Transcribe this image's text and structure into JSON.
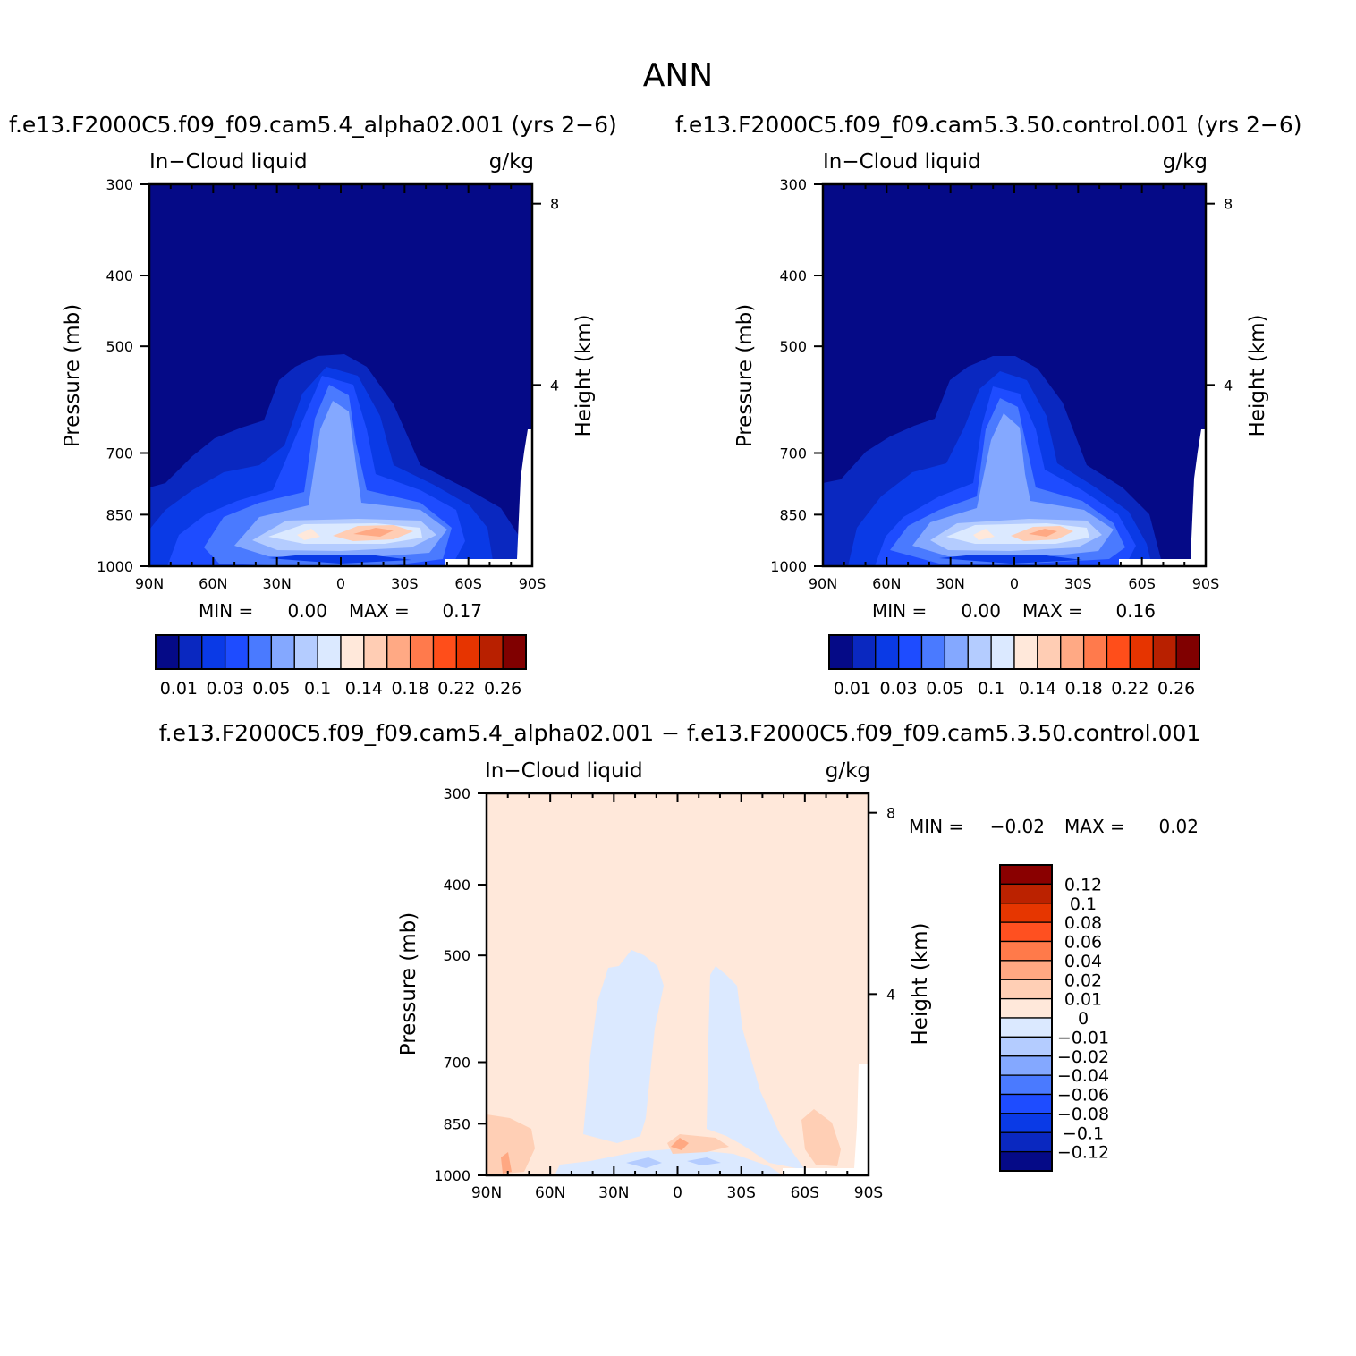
{
  "title": "ANN",
  "chart_data": [
    {
      "type": "heatmap",
      "subtitle": "f.e13.F2000C5.f09_f09.cam5.4_alpha02.001 (yrs 2−6)",
      "variable": "In−Cloud liquid",
      "units": "g/kg",
      "xlabel": "",
      "ylabel": "Pressure (mb)",
      "y2label": "Height (km)",
      "xticks": [
        "90N",
        "60N",
        "30N",
        "0",
        "30S",
        "60S",
        "90S"
      ],
      "xlim": [
        90,
        -90
      ],
      "yticks": [
        "300",
        "400",
        "500",
        "700",
        "850",
        "1000"
      ],
      "ylim": [
        1000,
        300
      ],
      "y_scale": "log",
      "y2ticks": [
        "8",
        "4"
      ],
      "min_label": "MIN =",
      "min_value": "0.00",
      "max_label": "MAX =",
      "max_value": "0.17",
      "peak": {
        "lat": -14,
        "pressure": 920,
        "value": 0.17
      },
      "colorbar": {
        "levels": [
          "0.01",
          "0.03",
          "0.05",
          "0.1",
          "0.14",
          "0.18",
          "0.22",
          "0.26"
        ],
        "colors": [
          "#050a87",
          "#0a28c0",
          "#0a3ae6",
          "#1e4cff",
          "#4a7aff",
          "#84a8ff",
          "#b4ccff",
          "#dbe9ff",
          "#ffe8da",
          "#ffcdb4",
          "#ffa984",
          "#ff7a4c",
          "#ff4e1a",
          "#e63400",
          "#b82000",
          "#800000"
        ]
      }
    },
    {
      "type": "heatmap",
      "subtitle": "f.e13.F2000C5.f09_f09.cam5.3.50.control.001 (yrs 2−6)",
      "variable": "In−Cloud liquid",
      "units": "g/kg",
      "xlabel": "",
      "ylabel": "Pressure (mb)",
      "y2label": "Height (km)",
      "xticks": [
        "90N",
        "60N",
        "30N",
        "0",
        "30S",
        "60S",
        "90S"
      ],
      "xlim": [
        90,
        -90
      ],
      "yticks": [
        "300",
        "400",
        "500",
        "700",
        "850",
        "1000"
      ],
      "ylim": [
        1000,
        300
      ],
      "y_scale": "log",
      "y2ticks": [
        "8",
        "4"
      ],
      "min_label": "MIN =",
      "min_value": "0.00",
      "max_label": "MAX =",
      "max_value": "0.16",
      "peak": {
        "lat": -14,
        "pressure": 920,
        "value": 0.16
      },
      "colorbar": {
        "levels": [
          "0.01",
          "0.03",
          "0.05",
          "0.1",
          "0.14",
          "0.18",
          "0.22",
          "0.26"
        ],
        "colors": [
          "#050a87",
          "#0a28c0",
          "#0a3ae6",
          "#1e4cff",
          "#4a7aff",
          "#84a8ff",
          "#b4ccff",
          "#dbe9ff",
          "#ffe8da",
          "#ffcdb4",
          "#ffa984",
          "#ff7a4c",
          "#ff4e1a",
          "#e63400",
          "#b82000",
          "#800000"
        ]
      }
    },
    {
      "type": "heatmap",
      "subtitle": "f.e13.F2000C5.f09_f09.cam5.4_alpha02.001 − f.e13.F2000C5.f09_f09.cam5.3.50.control.001",
      "variable": "In−Cloud liquid",
      "units": "g/kg",
      "xlabel": "",
      "ylabel": "Pressure (mb)",
      "y2label": "Height (km)",
      "xticks": [
        "90N",
        "60N",
        "30N",
        "0",
        "30S",
        "60S",
        "90S"
      ],
      "xlim": [
        90,
        -90
      ],
      "yticks": [
        "300",
        "400",
        "500",
        "700",
        "850",
        "1000"
      ],
      "ylim": [
        1000,
        300
      ],
      "y_scale": "log",
      "y2ticks": [
        "8",
        "4"
      ],
      "min_label": "MIN =",
      "min_value": "−0.02",
      "max_label": "MAX =",
      "max_value": "0.02",
      "colorbar": {
        "levels": [
          "0.12",
          "0.1",
          "0.08",
          "0.06",
          "0.04",
          "0.02",
          "0.01",
          "0",
          "−0.01",
          "−0.02",
          "−0.04",
          "−0.06",
          "−0.08",
          "−0.1",
          "−0.12"
        ],
        "colors": [
          "#8a0000",
          "#bb2200",
          "#e63600",
          "#ff5020",
          "#ff7a4a",
          "#ffa882",
          "#ffcfb5",
          "#ffe8da",
          "#dbe9ff",
          "#b4ccff",
          "#84a8ff",
          "#4a7aff",
          "#1e4cff",
          "#0a3ae6",
          "#0a28c0",
          "#050a87"
        ]
      }
    }
  ]
}
